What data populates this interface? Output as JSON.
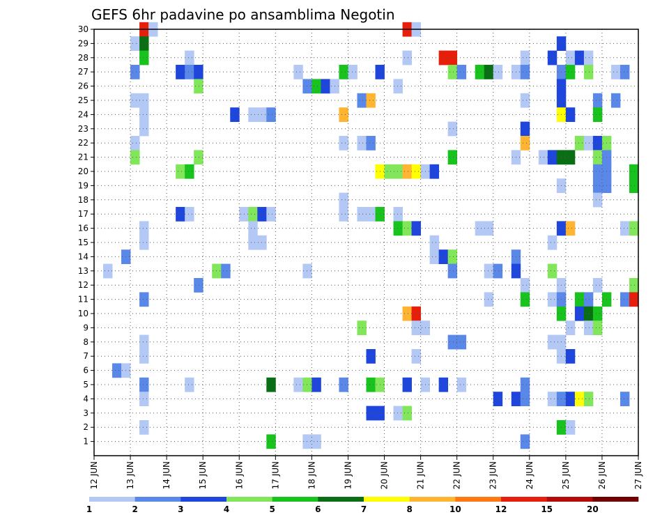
{
  "chart_data": {
    "type": "heatmap",
    "title": "GEFS 6hr padavine po ansamblima Negotin",
    "x_ticks": [
      "12 JUN",
      "13 JUN",
      "14 JUN",
      "15 JUN",
      "16 JUN",
      "17 JUN",
      "18 JUN",
      "19 JUN",
      "20 JUN",
      "21 JUN",
      "22 JUN",
      "23 JUN",
      "24 JUN",
      "25 JUN",
      "26 JUN",
      "27 JUN"
    ],
    "x_range_days": [
      12,
      27
    ],
    "y_ticks": [
      1,
      2,
      3,
      4,
      5,
      6,
      7,
      8,
      9,
      10,
      11,
      12,
      13,
      14,
      15,
      16,
      17,
      18,
      19,
      20,
      21,
      22,
      23,
      24,
      25,
      26,
      27,
      28,
      29,
      30
    ],
    "y_range": [
      0,
      30
    ],
    "grid": true,
    "colorbar": {
      "labels": [
        "1",
        "2",
        "3",
        "4",
        "5",
        "6",
        "7",
        "8",
        "10",
        "12",
        "15",
        "20"
      ],
      "colors": [
        "#b3c8f5",
        "#5a88e8",
        "#1e46dc",
        "#82e65a",
        "#19c31e",
        "#0a6e14",
        "#ffff00",
        "#ffb432",
        "#ff7814",
        "#e61e0a",
        "#b40a0a",
        "#700000"
      ]
    },
    "cells": [
      [
        13.25,
        30,
        "#e61e0a"
      ],
      [
        13.5,
        30,
        "#b3c8f5"
      ],
      [
        20.5,
        30,
        "#e61e0a"
      ],
      [
        20.75,
        30,
        "#b3c8f5"
      ],
      [
        13.0,
        29,
        "#b3c8f5"
      ],
      [
        13.25,
        29,
        "#0a6e14"
      ],
      [
        24.75,
        29,
        "#1e46dc"
      ],
      [
        13.25,
        28,
        "#19c31e"
      ],
      [
        14.5,
        28,
        "#b3c8f5"
      ],
      [
        20.5,
        28,
        "#b3c8f5"
      ],
      [
        21.5,
        28,
        "#e61e0a"
      ],
      [
        21.75,
        28,
        "#e61e0a"
      ],
      [
        23.75,
        28,
        "#b3c8f5"
      ],
      [
        24.5,
        28,
        "#1e46dc"
      ],
      [
        25.0,
        28,
        "#b3c8f5"
      ],
      [
        25.25,
        28,
        "#1e46dc"
      ],
      [
        25.5,
        28,
        "#b3c8f5"
      ],
      [
        13.0,
        27,
        "#5a88e8"
      ],
      [
        14.25,
        27,
        "#1e46dc"
      ],
      [
        14.5,
        27,
        "#5a88e8"
      ],
      [
        14.75,
        27,
        "#1e46dc"
      ],
      [
        17.5,
        27,
        "#b3c8f5"
      ],
      [
        18.75,
        27,
        "#19c31e"
      ],
      [
        19.0,
        27,
        "#b3c8f5"
      ],
      [
        19.75,
        27,
        "#1e46dc"
      ],
      [
        21.75,
        27,
        "#82e65a"
      ],
      [
        22.0,
        27,
        "#5a88e8"
      ],
      [
        22.5,
        27,
        "#19c31e"
      ],
      [
        22.75,
        27,
        "#0a6e14"
      ],
      [
        23.0,
        27,
        "#b3c8f5"
      ],
      [
        23.5,
        27,
        "#b3c8f5"
      ],
      [
        23.75,
        27,
        "#5a88e8"
      ],
      [
        24.75,
        27,
        "#5a88e8"
      ],
      [
        25.0,
        27,
        "#19c31e"
      ],
      [
        25.5,
        27,
        "#82e65a"
      ],
      [
        26.25,
        27,
        "#b3c8f5"
      ],
      [
        26.5,
        27,
        "#5a88e8"
      ],
      [
        14.75,
        26,
        "#82e65a"
      ],
      [
        17.75,
        26,
        "#5a88e8"
      ],
      [
        18.0,
        26,
        "#19c31e"
      ],
      [
        18.25,
        26,
        "#1e46dc"
      ],
      [
        18.5,
        26,
        "#b3c8f5"
      ],
      [
        20.25,
        26,
        "#b3c8f5"
      ],
      [
        24.75,
        26,
        "#1e46dc"
      ],
      [
        13.0,
        25,
        "#b3c8f5"
      ],
      [
        13.25,
        25,
        "#b3c8f5"
      ],
      [
        19.25,
        25,
        "#5a88e8"
      ],
      [
        19.5,
        25,
        "#ffb432"
      ],
      [
        23.75,
        25,
        "#b3c8f5"
      ],
      [
        24.75,
        25,
        "#1e46dc"
      ],
      [
        25.75,
        25,
        "#5a88e8"
      ],
      [
        26.25,
        25,
        "#5a88e8"
      ],
      [
        13.25,
        24,
        "#b3c8f5"
      ],
      [
        15.75,
        24,
        "#1e46dc"
      ],
      [
        16.25,
        24,
        "#b3c8f5"
      ],
      [
        16.5,
        24,
        "#b3c8f5"
      ],
      [
        16.75,
        24,
        "#5a88e8"
      ],
      [
        18.75,
        24,
        "#ffb432"
      ],
      [
        24.75,
        24,
        "#ffff00"
      ],
      [
        25.0,
        24,
        "#1e46dc"
      ],
      [
        25.75,
        24,
        "#19c31e"
      ],
      [
        13.25,
        23,
        "#b3c8f5"
      ],
      [
        21.75,
        23,
        "#b3c8f5"
      ],
      [
        23.75,
        23,
        "#1e46dc"
      ],
      [
        13.0,
        22,
        "#b3c8f5"
      ],
      [
        18.75,
        22,
        "#b3c8f5"
      ],
      [
        19.25,
        22,
        "#b3c8f5"
      ],
      [
        19.5,
        22,
        "#5a88e8"
      ],
      [
        23.75,
        22,
        "#ffb432"
      ],
      [
        25.25,
        22,
        "#82e65a"
      ],
      [
        25.5,
        22,
        "#b3c8f5"
      ],
      [
        25.75,
        22,
        "#1e46dc"
      ],
      [
        26.0,
        22,
        "#82e65a"
      ],
      [
        13.0,
        21,
        "#82e65a"
      ],
      [
        14.75,
        21,
        "#82e65a"
      ],
      [
        21.75,
        21,
        "#19c31e"
      ],
      [
        23.5,
        21,
        "#b3c8f5"
      ],
      [
        24.25,
        21,
        "#b3c8f5"
      ],
      [
        24.5,
        21,
        "#1e46dc"
      ],
      [
        24.75,
        21,
        "#0a6e14"
      ],
      [
        25.0,
        21,
        "#0a6e14"
      ],
      [
        25.75,
        21,
        "#82e65a"
      ],
      [
        26.0,
        21,
        "#5a88e8"
      ],
      [
        14.25,
        20,
        "#82e65a"
      ],
      [
        14.5,
        20,
        "#19c31e"
      ],
      [
        19.75,
        20,
        "#ffff00"
      ],
      [
        20.0,
        20,
        "#82e65a"
      ],
      [
        20.25,
        20,
        "#82e65a"
      ],
      [
        20.5,
        20,
        "#ffb432"
      ],
      [
        20.75,
        20,
        "#ffff00"
      ],
      [
        21.0,
        20,
        "#b3c8f5"
      ],
      [
        21.25,
        20,
        "#1e46dc"
      ],
      [
        25.75,
        20,
        "#5a88e8"
      ],
      [
        26.0,
        20,
        "#5a88e8"
      ],
      [
        26.75,
        20,
        "#19c31e"
      ],
      [
        25.75,
        19,
        "#5a88e8"
      ],
      [
        26.0,
        19,
        "#5a88e8"
      ],
      [
        26.75,
        19,
        "#19c31e"
      ],
      [
        24.75,
        19,
        "#b3c8f5"
      ],
      [
        18.75,
        18,
        "#b3c8f5"
      ],
      [
        25.75,
        18,
        "#b3c8f5"
      ],
      [
        14.25,
        17,
        "#1e46dc"
      ],
      [
        14.5,
        17,
        "#b3c8f5"
      ],
      [
        16.0,
        17,
        "#b3c8f5"
      ],
      [
        16.25,
        17,
        "#82e65a"
      ],
      [
        16.5,
        17,
        "#1e46dc"
      ],
      [
        16.75,
        17,
        "#b3c8f5"
      ],
      [
        18.75,
        17,
        "#b3c8f5"
      ],
      [
        19.25,
        17,
        "#b3c8f5"
      ],
      [
        19.5,
        17,
        "#b3c8f5"
      ],
      [
        19.75,
        17,
        "#19c31e"
      ],
      [
        20.25,
        17,
        "#b3c8f5"
      ],
      [
        13.25,
        16,
        "#b3c8f5"
      ],
      [
        16.25,
        16,
        "#b3c8f5"
      ],
      [
        20.25,
        16,
        "#19c31e"
      ],
      [
        20.5,
        16,
        "#82e65a"
      ],
      [
        20.75,
        16,
        "#1e46dc"
      ],
      [
        22.5,
        16,
        "#b3c8f5"
      ],
      [
        22.75,
        16,
        "#b3c8f5"
      ],
      [
        24.75,
        16,
        "#1e46dc"
      ],
      [
        25.0,
        16,
        "#ffb432"
      ],
      [
        26.5,
        16,
        "#b3c8f5"
      ],
      [
        26.75,
        16,
        "#82e65a"
      ],
      [
        13.25,
        15,
        "#b3c8f5"
      ],
      [
        16.25,
        15,
        "#b3c8f5"
      ],
      [
        16.5,
        15,
        "#b3c8f5"
      ],
      [
        21.25,
        15,
        "#b3c8f5"
      ],
      [
        24.5,
        15,
        "#b3c8f5"
      ],
      [
        12.75,
        14,
        "#5a88e8"
      ],
      [
        21.25,
        14,
        "#b3c8f5"
      ],
      [
        21.5,
        14,
        "#1e46dc"
      ],
      [
        21.75,
        14,
        "#82e65a"
      ],
      [
        23.5,
        14,
        "#5a88e8"
      ],
      [
        12.25,
        13,
        "#b3c8f5"
      ],
      [
        15.25,
        13,
        "#82e65a"
      ],
      [
        15.5,
        13,
        "#5a88e8"
      ],
      [
        17.75,
        13,
        "#b3c8f5"
      ],
      [
        21.75,
        13,
        "#5a88e8"
      ],
      [
        22.75,
        13,
        "#b3c8f5"
      ],
      [
        23.0,
        13,
        "#5a88e8"
      ],
      [
        23.5,
        13,
        "#1e46dc"
      ],
      [
        24.5,
        13,
        "#82e65a"
      ],
      [
        14.75,
        12,
        "#5a88e8"
      ],
      [
        23.75,
        12,
        "#b3c8f5"
      ],
      [
        24.75,
        12,
        "#b3c8f5"
      ],
      [
        25.75,
        12,
        "#b3c8f5"
      ],
      [
        26.75,
        12,
        "#82e65a"
      ],
      [
        13.25,
        11,
        "#5a88e8"
      ],
      [
        22.75,
        11,
        "#b3c8f5"
      ],
      [
        23.75,
        11,
        "#19c31e"
      ],
      [
        24.5,
        11,
        "#b3c8f5"
      ],
      [
        24.75,
        11,
        "#5a88e8"
      ],
      [
        25.25,
        11,
        "#19c31e"
      ],
      [
        25.5,
        11,
        "#5a88e8"
      ],
      [
        26.0,
        11,
        "#19c31e"
      ],
      [
        26.5,
        11,
        "#5a88e8"
      ],
      [
        26.75,
        11,
        "#e61e0a"
      ],
      [
        20.5,
        10,
        "#ffb432"
      ],
      [
        20.75,
        10,
        "#e61e0a"
      ],
      [
        24.75,
        10,
        "#19c31e"
      ],
      [
        25.25,
        10,
        "#1e46dc"
      ],
      [
        25.5,
        10,
        "#0a6e14"
      ],
      [
        25.75,
        10,
        "#19c31e"
      ],
      [
        19.25,
        9,
        "#82e65a"
      ],
      [
        20.75,
        9,
        "#b3c8f5"
      ],
      [
        21.0,
        9,
        "#b3c8f5"
      ],
      [
        25.0,
        9,
        "#b3c8f5"
      ],
      [
        25.5,
        9,
        "#b3c8f5"
      ],
      [
        25.75,
        9,
        "#82e65a"
      ],
      [
        13.25,
        8,
        "#b3c8f5"
      ],
      [
        21.75,
        8,
        "#5a88e8"
      ],
      [
        22.0,
        8,
        "#5a88e8"
      ],
      [
        24.5,
        8,
        "#b3c8f5"
      ],
      [
        24.75,
        8,
        "#b3c8f5"
      ],
      [
        13.25,
        7,
        "#b3c8f5"
      ],
      [
        19.5,
        7,
        "#1e46dc"
      ],
      [
        20.75,
        7,
        "#b3c8f5"
      ],
      [
        24.75,
        7,
        "#b3c8f5"
      ],
      [
        25.0,
        7,
        "#1e46dc"
      ],
      [
        12.5,
        6,
        "#5a88e8"
      ],
      [
        12.75,
        6,
        "#b3c8f5"
      ],
      [
        13.25,
        5,
        "#5a88e8"
      ],
      [
        14.5,
        5,
        "#b3c8f5"
      ],
      [
        16.75,
        5,
        "#0a6e14"
      ],
      [
        17.5,
        5,
        "#b3c8f5"
      ],
      [
        17.75,
        5,
        "#82e65a"
      ],
      [
        18.0,
        5,
        "#1e46dc"
      ],
      [
        18.75,
        5,
        "#5a88e8"
      ],
      [
        19.5,
        5,
        "#19c31e"
      ],
      [
        19.75,
        5,
        "#82e65a"
      ],
      [
        20.5,
        5,
        "#1e46dc"
      ],
      [
        21.0,
        5,
        "#b3c8f5"
      ],
      [
        21.5,
        5,
        "#1e46dc"
      ],
      [
        22.0,
        5,
        "#b3c8f5"
      ],
      [
        23.75,
        5,
        "#5a88e8"
      ],
      [
        13.25,
        4,
        "#b3c8f5"
      ],
      [
        23.0,
        4,
        "#1e46dc"
      ],
      [
        23.5,
        4,
        "#1e46dc"
      ],
      [
        23.75,
        4,
        "#5a88e8"
      ],
      [
        24.5,
        4,
        "#b3c8f5"
      ],
      [
        24.75,
        4,
        "#5a88e8"
      ],
      [
        25.0,
        4,
        "#1e46dc"
      ],
      [
        25.25,
        4,
        "#ffff00"
      ],
      [
        25.5,
        4,
        "#82e65a"
      ],
      [
        26.5,
        4,
        "#5a88e8"
      ],
      [
        19.5,
        3,
        "#1e46dc"
      ],
      [
        19.75,
        3,
        "#1e46dc"
      ],
      [
        20.25,
        3,
        "#b3c8f5"
      ],
      [
        20.5,
        3,
        "#82e65a"
      ],
      [
        13.25,
        2,
        "#b3c8f5"
      ],
      [
        24.75,
        2,
        "#19c31e"
      ],
      [
        25.0,
        2,
        "#b3c8f5"
      ],
      [
        16.75,
        1,
        "#19c31e"
      ],
      [
        17.75,
        1,
        "#b3c8f5"
      ],
      [
        18.0,
        1,
        "#b3c8f5"
      ],
      [
        23.75,
        1,
        "#5a88e8"
      ]
    ]
  }
}
